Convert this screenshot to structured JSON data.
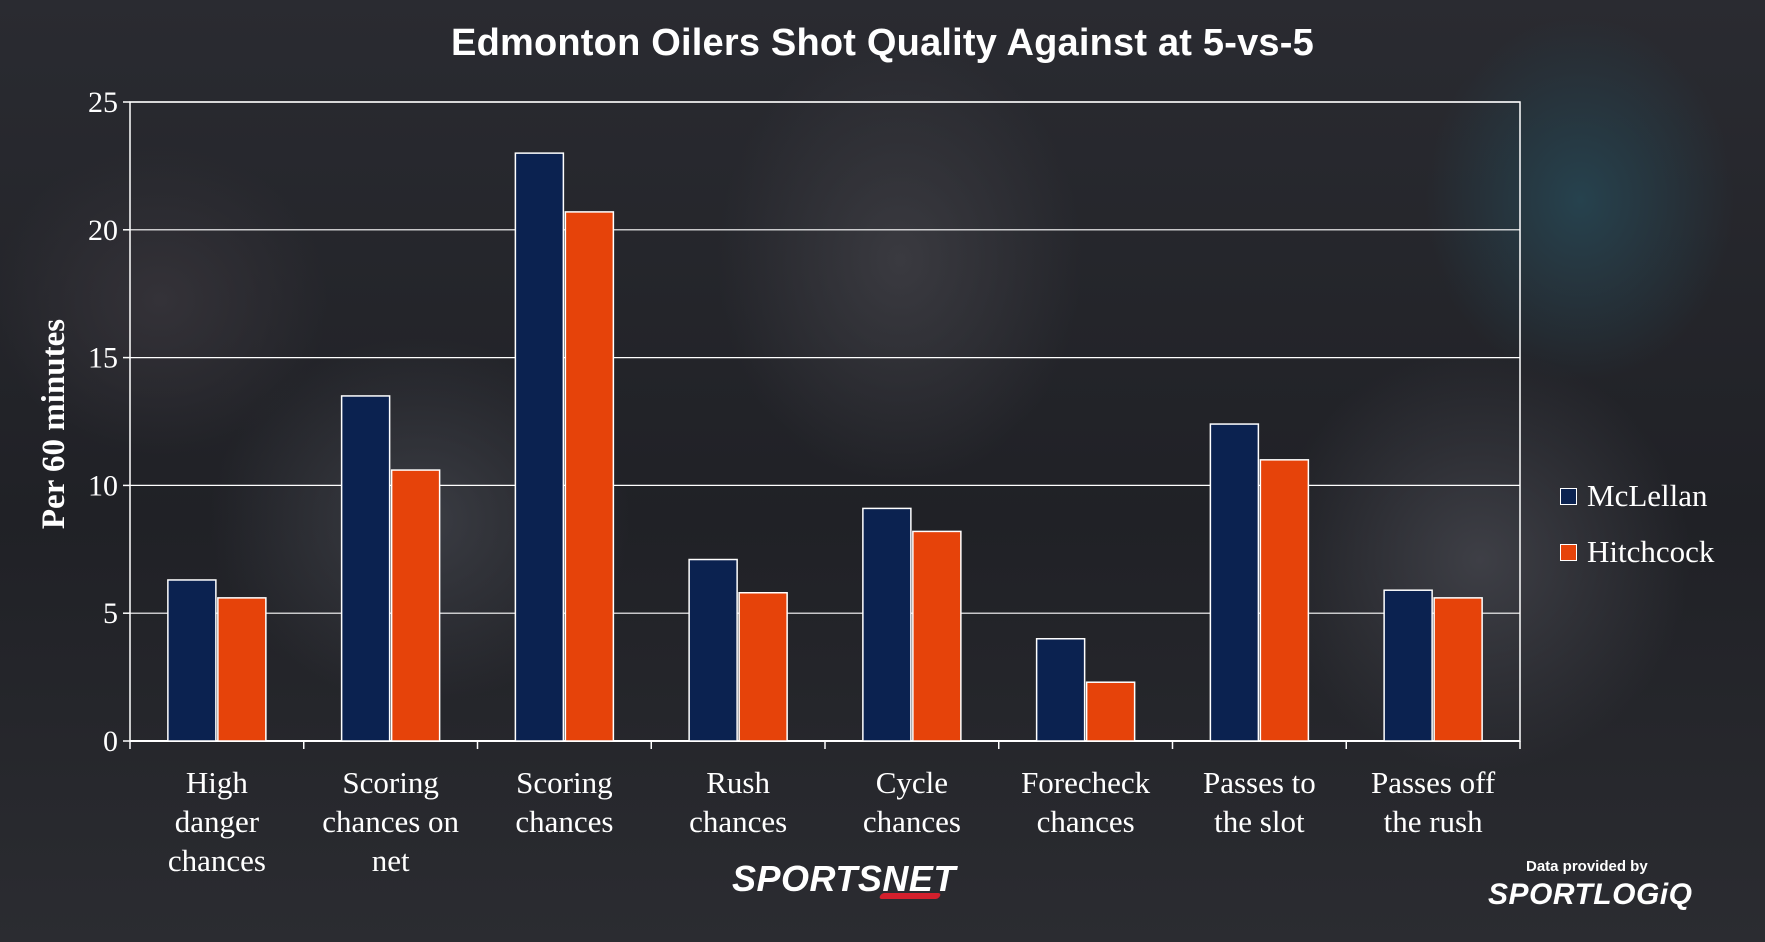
{
  "chart_data": {
    "type": "bar",
    "title": "Edmonton Oilers Shot Quality Against at 5-vs-5",
    "ylabel": "Per 60 minutes",
    "xlabel": "",
    "ylim": [
      0,
      25
    ],
    "yticks": [
      0,
      5,
      10,
      15,
      20,
      25
    ],
    "grid": true,
    "legend_placement": "right",
    "categories": [
      [
        "High",
        "danger",
        "chances"
      ],
      [
        "Scoring",
        "chances on",
        "net"
      ],
      [
        "Scoring",
        "chances"
      ],
      [
        "Rush",
        "chances"
      ],
      [
        "Cycle",
        "chances"
      ],
      [
        "Forecheck",
        "chances"
      ],
      [
        "Passes to",
        "the slot"
      ],
      [
        "Passes off",
        "the rush"
      ]
    ],
    "series": [
      {
        "name": "McLellan",
        "color": "#0b2250",
        "values": [
          6.3,
          13.5,
          23.0,
          7.1,
          9.1,
          4.0,
          12.4,
          5.9
        ]
      },
      {
        "name": "Hitchcock",
        "color": "#e6430a",
        "values": [
          5.6,
          10.6,
          20.7,
          5.8,
          8.2,
          2.3,
          11.0,
          5.6
        ]
      }
    ]
  },
  "branding": {
    "sportsnet_left": "SPORTS",
    "sportsnet_right": "NET",
    "provided_by": "Data provided by",
    "sportlogiq": "SPORTLOGiQ"
  }
}
